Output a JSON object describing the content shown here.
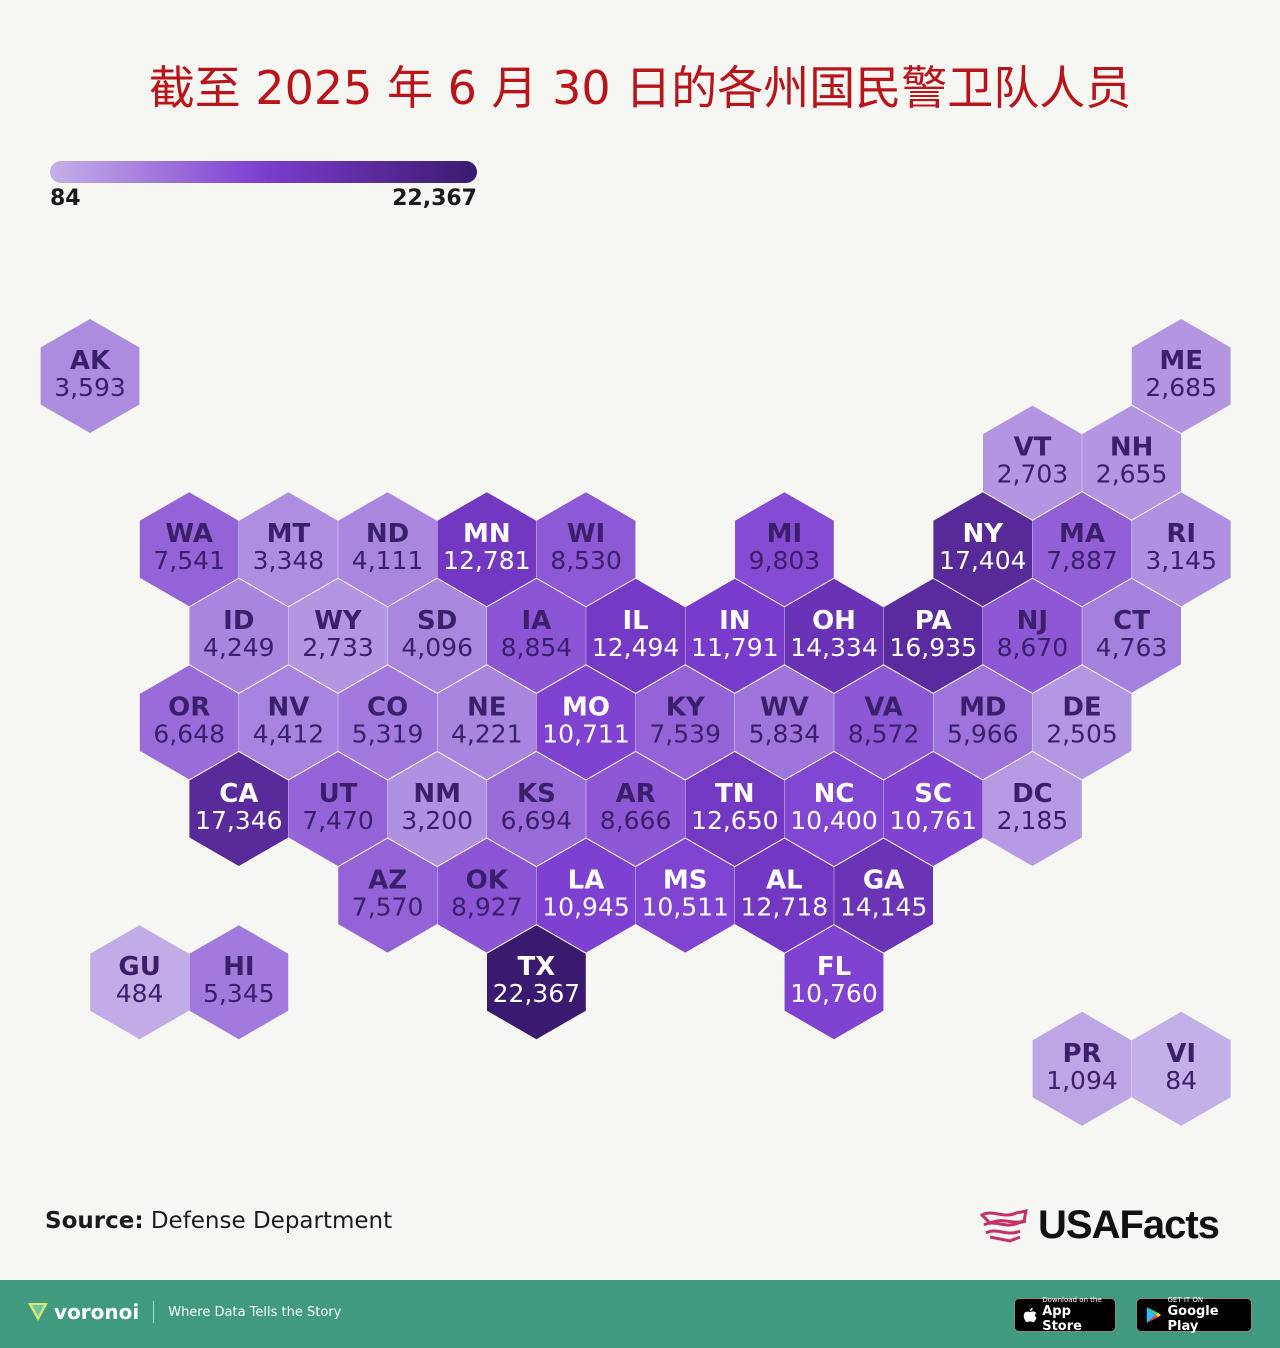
{
  "title": "截至 2025 年 6 月 30 日的各州国民警卫队人员",
  "legend": {
    "min_label": "84",
    "max_label": "22,367",
    "min_value": 84,
    "max_value": 22367,
    "color_low": "#c4b0e8",
    "color_mid": "#7c3dd0",
    "color_high": "#3a1a6e"
  },
  "map_data": {
    "type": "hex-tile-map",
    "tiles": [
      {
        "abbr": "AK",
        "value_label": "3,593",
        "value": 3593,
        "col": 0,
        "row": 0
      },
      {
        "abbr": "ME",
        "value_label": "2,685",
        "value": 2685,
        "col": 11,
        "row": 0
      },
      {
        "abbr": "VT",
        "value_label": "2,703",
        "value": 2703,
        "col": 9.5,
        "row": 1
      },
      {
        "abbr": "NH",
        "value_label": "2,655",
        "value": 2655,
        "col": 10.5,
        "row": 1
      },
      {
        "abbr": "WA",
        "value_label": "7,541",
        "value": 7541,
        "col": 1,
        "row": 2
      },
      {
        "abbr": "MT",
        "value_label": "3,348",
        "value": 3348,
        "col": 2,
        "row": 2
      },
      {
        "abbr": "ND",
        "value_label": "4,111",
        "value": 4111,
        "col": 3,
        "row": 2
      },
      {
        "abbr": "MN",
        "value_label": "12,781",
        "value": 12781,
        "col": 4,
        "row": 2
      },
      {
        "abbr": "WI",
        "value_label": "8,530",
        "value": 8530,
        "col": 5,
        "row": 2
      },
      {
        "abbr": "MI",
        "value_label": "9,803",
        "value": 9803,
        "col": 7,
        "row": 2
      },
      {
        "abbr": "NY",
        "value_label": "17,404",
        "value": 17404,
        "col": 9,
        "row": 2
      },
      {
        "abbr": "MA",
        "value_label": "7,887",
        "value": 7887,
        "col": 10,
        "row": 2
      },
      {
        "abbr": "RI",
        "value_label": "3,145",
        "value": 3145,
        "col": 11,
        "row": 2
      },
      {
        "abbr": "ID",
        "value_label": "4,249",
        "value": 4249,
        "col": 1.5,
        "row": 3
      },
      {
        "abbr": "WY",
        "value_label": "2,733",
        "value": 2733,
        "col": 2.5,
        "row": 3
      },
      {
        "abbr": "SD",
        "value_label": "4,096",
        "value": 4096,
        "col": 3.5,
        "row": 3
      },
      {
        "abbr": "IA",
        "value_label": "8,854",
        "value": 8854,
        "col": 4.5,
        "row": 3
      },
      {
        "abbr": "IL",
        "value_label": "12,494",
        "value": 12494,
        "col": 5.5,
        "row": 3
      },
      {
        "abbr": "IN",
        "value_label": "11,791",
        "value": 11791,
        "col": 6.5,
        "row": 3
      },
      {
        "abbr": "OH",
        "value_label": "14,334",
        "value": 14334,
        "col": 7.5,
        "row": 3
      },
      {
        "abbr": "PA",
        "value_label": "16,935",
        "value": 16935,
        "col": 8.5,
        "row": 3
      },
      {
        "abbr": "NJ",
        "value_label": "8,670",
        "value": 8670,
        "col": 9.5,
        "row": 3
      },
      {
        "abbr": "CT",
        "value_label": "4,763",
        "value": 4763,
        "col": 10.5,
        "row": 3
      },
      {
        "abbr": "OR",
        "value_label": "6,648",
        "value": 6648,
        "col": 1,
        "row": 4
      },
      {
        "abbr": "NV",
        "value_label": "4,412",
        "value": 4412,
        "col": 2,
        "row": 4
      },
      {
        "abbr": "CO",
        "value_label": "5,319",
        "value": 5319,
        "col": 3,
        "row": 4
      },
      {
        "abbr": "NE",
        "value_label": "4,221",
        "value": 4221,
        "col": 4,
        "row": 4
      },
      {
        "abbr": "MO",
        "value_label": "10,711",
        "value": 10711,
        "col": 5,
        "row": 4
      },
      {
        "abbr": "KY",
        "value_label": "7,539",
        "value": 7539,
        "col": 6,
        "row": 4
      },
      {
        "abbr": "WV",
        "value_label": "5,834",
        "value": 5834,
        "col": 7,
        "row": 4
      },
      {
        "abbr": "VA",
        "value_label": "8,572",
        "value": 8572,
        "col": 8,
        "row": 4
      },
      {
        "abbr": "MD",
        "value_label": "5,966",
        "value": 5966,
        "col": 9,
        "row": 4
      },
      {
        "abbr": "DE",
        "value_label": "2,505",
        "value": 2505,
        "col": 10,
        "row": 4
      },
      {
        "abbr": "CA",
        "value_label": "17,346",
        "value": 17346,
        "col": 1.5,
        "row": 5
      },
      {
        "abbr": "UT",
        "value_label": "7,470",
        "value": 7470,
        "col": 2.5,
        "row": 5
      },
      {
        "abbr": "NM",
        "value_label": "3,200",
        "value": 3200,
        "col": 3.5,
        "row": 5
      },
      {
        "abbr": "KS",
        "value_label": "6,694",
        "value": 6694,
        "col": 4.5,
        "row": 5
      },
      {
        "abbr": "AR",
        "value_label": "8,666",
        "value": 8666,
        "col": 5.5,
        "row": 5
      },
      {
        "abbr": "TN",
        "value_label": "12,650",
        "value": 12650,
        "col": 6.5,
        "row": 5
      },
      {
        "abbr": "NC",
        "value_label": "10,400",
        "value": 10400,
        "col": 7.5,
        "row": 5
      },
      {
        "abbr": "SC",
        "value_label": "10,761",
        "value": 10761,
        "col": 8.5,
        "row": 5
      },
      {
        "abbr": "DC",
        "value_label": "2,185",
        "value": 2185,
        "col": 9.5,
        "row": 5
      },
      {
        "abbr": "AZ",
        "value_label": "7,570",
        "value": 7570,
        "col": 3,
        "row": 6
      },
      {
        "abbr": "OK",
        "value_label": "8,927",
        "value": 8927,
        "col": 4,
        "row": 6
      },
      {
        "abbr": "LA",
        "value_label": "10,945",
        "value": 10945,
        "col": 5,
        "row": 6
      },
      {
        "abbr": "MS",
        "value_label": "10,511",
        "value": 10511,
        "col": 6,
        "row": 6
      },
      {
        "abbr": "AL",
        "value_label": "12,718",
        "value": 12718,
        "col": 7,
        "row": 6
      },
      {
        "abbr": "GA",
        "value_label": "14,145",
        "value": 14145,
        "col": 8,
        "row": 6
      },
      {
        "abbr": "GU",
        "value_label": "484",
        "value": 484,
        "col": 0.5,
        "row": 7
      },
      {
        "abbr": "HI",
        "value_label": "5,345",
        "value": 5345,
        "col": 1.5,
        "row": 7
      },
      {
        "abbr": "TX",
        "value_label": "22,367",
        "value": 22367,
        "col": 4.5,
        "row": 7
      },
      {
        "abbr": "FL",
        "value_label": "10,760",
        "value": 10760,
        "col": 7.5,
        "row": 7
      },
      {
        "abbr": "PR",
        "value_label": "1,094",
        "value": 1094,
        "col": 10,
        "row": 8
      },
      {
        "abbr": "VI",
        "value_label": "84",
        "value": 84,
        "col": 11,
        "row": 8
      }
    ]
  },
  "source": {
    "label": "Source:",
    "text": "Defense Department"
  },
  "brand": {
    "name": "USAFacts",
    "accent": "#c4306a"
  },
  "footer": {
    "logo_name": "voronoi",
    "tagline": "Where Data Tells the Story",
    "appstore_small": "Download on the",
    "appstore_big": "App Store",
    "playstore_small": "GET IT ON",
    "playstore_big": "Google Play",
    "background": "#3f9a7f"
  }
}
